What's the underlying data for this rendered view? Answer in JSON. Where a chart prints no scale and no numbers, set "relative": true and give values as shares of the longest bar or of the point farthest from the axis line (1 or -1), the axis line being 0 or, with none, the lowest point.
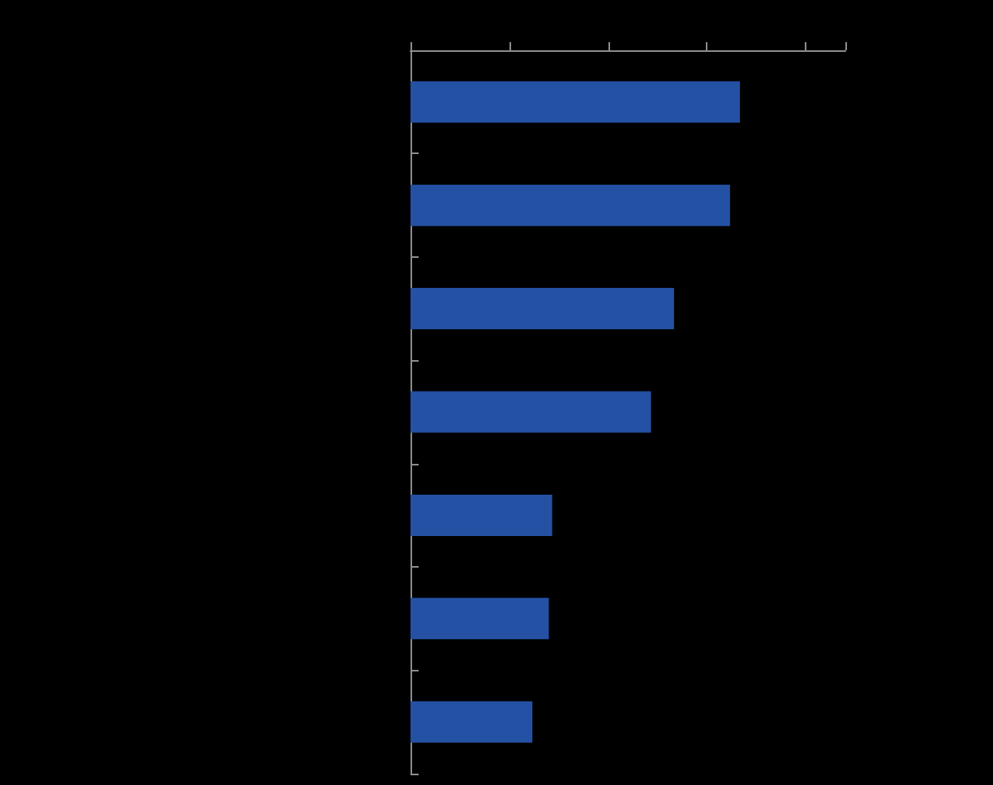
{
  "chart_data": {
    "type": "bar",
    "orientation": "horizontal",
    "relative": true,
    "categories": [
      null,
      null,
      null,
      null,
      null,
      null,
      null
    ],
    "values": [
      1,
      0.97,
      0.8,
      0.73,
      0.43,
      0.42,
      0.37
    ],
    "color": "#2451a4",
    "grid": false
  }
}
